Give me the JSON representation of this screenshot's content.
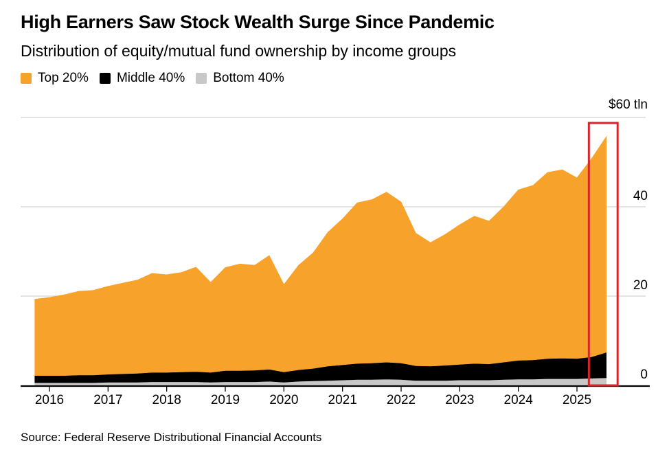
{
  "title": "High Earners Saw Stock Wealth Surge Since Pandemic",
  "subtitle": "Distribution of equity/mutual fund ownership by income groups",
  "source": "Source: Federal Reserve Distributional Financial Accounts",
  "legend": [
    {
      "label": "Top 20%",
      "color": "#F7A22B"
    },
    {
      "label": "Middle 40%",
      "color": "#000000"
    },
    {
      "label": "Bottom 40%",
      "color": "#C8C8C8"
    }
  ],
  "highlight_color": "#D6262B",
  "chart_data": {
    "type": "area",
    "stacked": true,
    "title": "High Earners Saw Stock Wealth Surge Since Pandemic",
    "subtitle": "Distribution of equity/mutual fund ownership by income groups",
    "y_unit_label": "$60 tln",
    "ylim": [
      0,
      60
    ],
    "y_ticks": [
      0,
      20,
      40,
      60
    ],
    "y_tick_labels": [
      "0",
      "20",
      "40",
      "$60 tln"
    ],
    "x_tick_labels": [
      "2016",
      "2017",
      "2018",
      "2019",
      "2020",
      "2021",
      "2022",
      "2023",
      "2024",
      "2025"
    ],
    "x": [
      2015.75,
      2016.0,
      2016.25,
      2016.5,
      2016.75,
      2017.0,
      2017.25,
      2017.5,
      2017.75,
      2018.0,
      2018.25,
      2018.5,
      2018.75,
      2019.0,
      2019.25,
      2019.5,
      2019.75,
      2020.0,
      2020.25,
      2020.5,
      2020.75,
      2021.0,
      2021.25,
      2021.5,
      2021.75,
      2022.0,
      2022.25,
      2022.5,
      2022.75,
      2023.0,
      2023.25,
      2023.5,
      2023.75,
      2024.0,
      2024.25,
      2024.5,
      2024.75,
      2025.0,
      2025.25,
      2025.5
    ],
    "series": [
      {
        "name": "Bottom 40%",
        "color": "#C8C8C8",
        "values": [
          0.6,
          0.6,
          0.6,
          0.6,
          0.6,
          0.7,
          0.7,
          0.7,
          0.8,
          0.8,
          0.8,
          0.8,
          0.7,
          0.8,
          0.8,
          0.8,
          0.9,
          0.7,
          0.9,
          1.0,
          1.1,
          1.2,
          1.3,
          1.3,
          1.4,
          1.3,
          1.1,
          1.1,
          1.1,
          1.2,
          1.2,
          1.2,
          1.3,
          1.4,
          1.4,
          1.5,
          1.5,
          1.5,
          1.6,
          1.7
        ]
      },
      {
        "name": "Middle 40%",
        "color": "#000000",
        "values": [
          1.6,
          1.6,
          1.6,
          1.7,
          1.7,
          1.8,
          1.9,
          2.0,
          2.1,
          2.1,
          2.2,
          2.3,
          2.2,
          2.5,
          2.5,
          2.6,
          2.7,
          2.3,
          2.6,
          2.8,
          3.2,
          3.4,
          3.6,
          3.7,
          3.8,
          3.7,
          3.3,
          3.2,
          3.4,
          3.5,
          3.7,
          3.6,
          3.9,
          4.2,
          4.3,
          4.5,
          4.6,
          4.5,
          4.8,
          5.7
        ]
      },
      {
        "name": "Top 20%",
        "color": "#F7A22B",
        "values": [
          17.1,
          17.5,
          18.1,
          18.8,
          19.0,
          19.7,
          20.3,
          20.9,
          22.2,
          21.9,
          22.3,
          23.4,
          20.2,
          23.1,
          23.9,
          23.5,
          25.5,
          19.6,
          23.4,
          25.9,
          30.0,
          32.7,
          36.0,
          36.6,
          38.1,
          36.1,
          29.7,
          27.7,
          29.3,
          31.3,
          33.0,
          32.0,
          34.8,
          38.2,
          39.1,
          41.7,
          42.2,
          40.5,
          44.4,
          48.3
        ]
      }
    ],
    "highlight": {
      "from": 2025.25,
      "to": 2025.6
    }
  }
}
